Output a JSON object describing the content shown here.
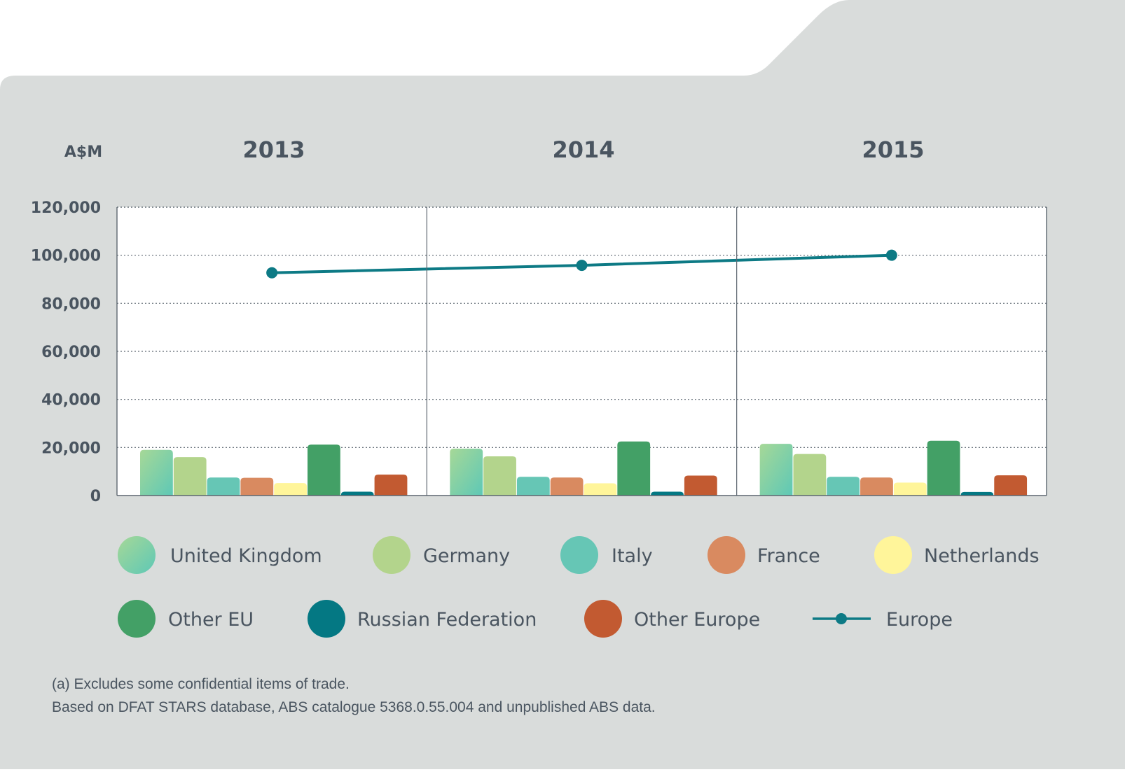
{
  "chart_data": {
    "type": "bar",
    "unit_label": "A$M",
    "categories": [
      "2013",
      "2014",
      "2015"
    ],
    "ylim": [
      0,
      120000
    ],
    "yticks": [
      "120,000",
      "100,000",
      "80,000",
      "60,000",
      "40,000",
      "20,000",
      "0"
    ],
    "ytick_values": [
      120000,
      100000,
      80000,
      60000,
      40000,
      20000,
      0
    ],
    "grid": true,
    "series": [
      {
        "name": "United Kingdom",
        "color": "#84cfa5",
        "values": [
          19000,
          19500,
          21500
        ]
      },
      {
        "name": "Germany",
        "color": "#b3d48c",
        "values": [
          16000,
          16300,
          17300
        ]
      },
      {
        "name": "Italy",
        "color": "#66c6b5",
        "values": [
          7500,
          7800,
          7800
        ]
      },
      {
        "name": "France",
        "color": "#d98a60",
        "values": [
          7400,
          7500,
          7500
        ]
      },
      {
        "name": "Netherlands",
        "color": "#fff59a",
        "values": [
          5200,
          5100,
          5400
        ]
      },
      {
        "name": "Other EU",
        "color": "#43a066",
        "values": [
          21200,
          22500,
          22800
        ]
      },
      {
        "name": "Russian Federation",
        "color": "#047883",
        "values": [
          1600,
          1600,
          1500
        ]
      },
      {
        "name": "Other Europe",
        "color": "#c25a31",
        "values": [
          8700,
          8300,
          8400
        ]
      }
    ],
    "line_series": {
      "name": "Europe",
      "color": "#0d7a85",
      "values": [
        92700,
        95800,
        100000
      ]
    },
    "legend_position": "bottom"
  },
  "footnotes": {
    "line1": "(a) Excludes some confidential items of trade.",
    "line2": "Based on DFAT STARS database, ABS catalogue 5368.0.55.004 and unpublished ABS data."
  }
}
